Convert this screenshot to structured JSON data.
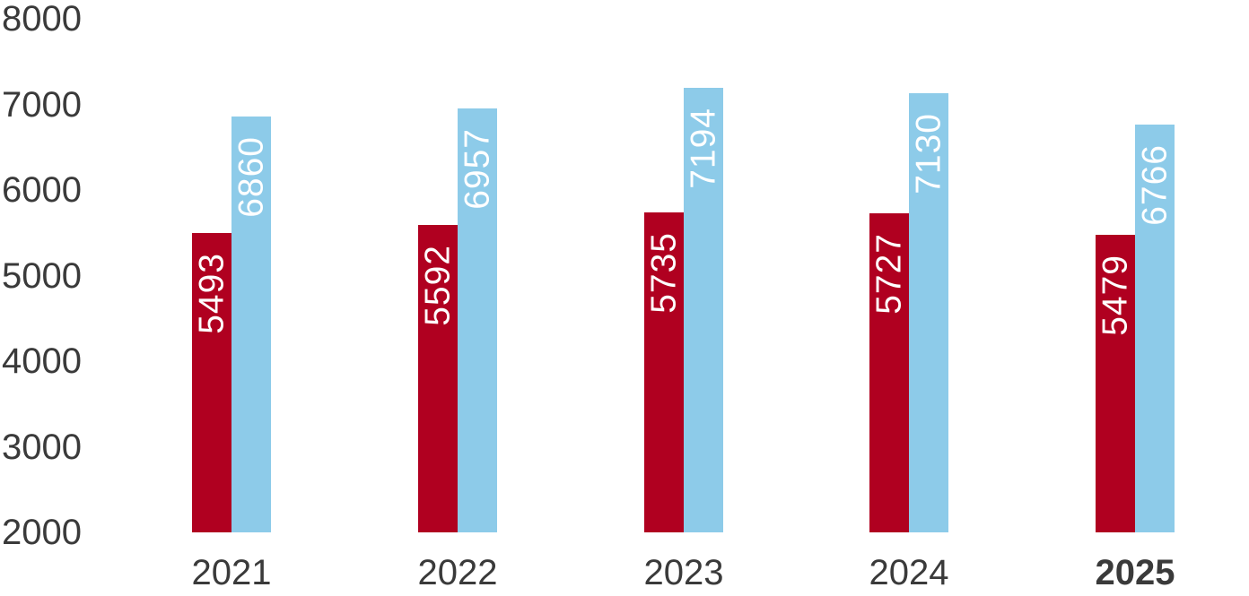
{
  "chart_data": {
    "type": "bar",
    "categories": [
      "2021",
      "2022",
      "2023",
      "2024",
      "2025"
    ],
    "series": [
      {
        "name": "red-series",
        "color": "#b00020",
        "values": [
          5493,
          5592,
          5735,
          5727,
          5479
        ]
      },
      {
        "name": "blue-series",
        "color": "#8dcbe9",
        "values": [
          6860,
          6957,
          7194,
          7130,
          6766
        ]
      }
    ],
    "title": "",
    "xlabel": "",
    "ylabel": "",
    "ylim": [
      2000,
      8000
    ],
    "yticks": [
      2000,
      3000,
      4000,
      5000,
      6000,
      7000,
      8000
    ],
    "grid": false,
    "legend": "none",
    "value_labels": "inside-top-rotated-white",
    "highlight_category": "2025",
    "colors": {
      "red_bar": "#b00020",
      "blue_bar": "#8dcbe9",
      "axis_text": "#3a3a3a",
      "value_label_text": "#ffffff",
      "background": "#ffffff"
    }
  }
}
